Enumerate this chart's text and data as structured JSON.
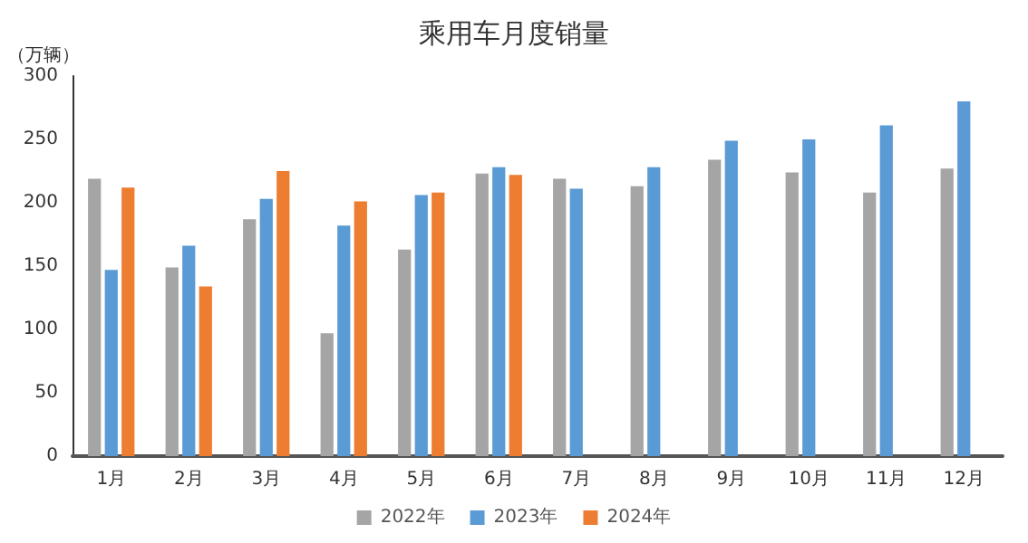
{
  "chart_data": {
    "type": "bar",
    "title": "乘用车月度销量",
    "ylabel": "（万辆）",
    "categories": [
      "1月",
      "2月",
      "3月",
      "4月",
      "5月",
      "6月",
      "7月",
      "8月",
      "9月",
      "10月",
      "11月",
      "12月"
    ],
    "series": [
      {
        "name": "2022年",
        "color": "#a5a5a5",
        "values": [
          219,
          149,
          187,
          97,
          163,
          223,
          219,
          213,
          234,
          224,
          208,
          227
        ]
      },
      {
        "name": "2023年",
        "color": "#5b9bd5",
        "values": [
          147,
          166,
          203,
          182,
          206,
          228,
          211,
          228,
          249,
          250,
          261,
          280
        ]
      },
      {
        "name": "2024年",
        "color": "#ed7d31",
        "values": [
          212,
          134,
          225,
          201,
          208,
          222,
          null,
          null,
          null,
          null,
          null,
          null
        ]
      }
    ],
    "ylim": [
      0,
      300
    ],
    "yticks": [
      0,
      50,
      100,
      150,
      200,
      250,
      300
    ],
    "grid": false,
    "legend": "bottom"
  }
}
